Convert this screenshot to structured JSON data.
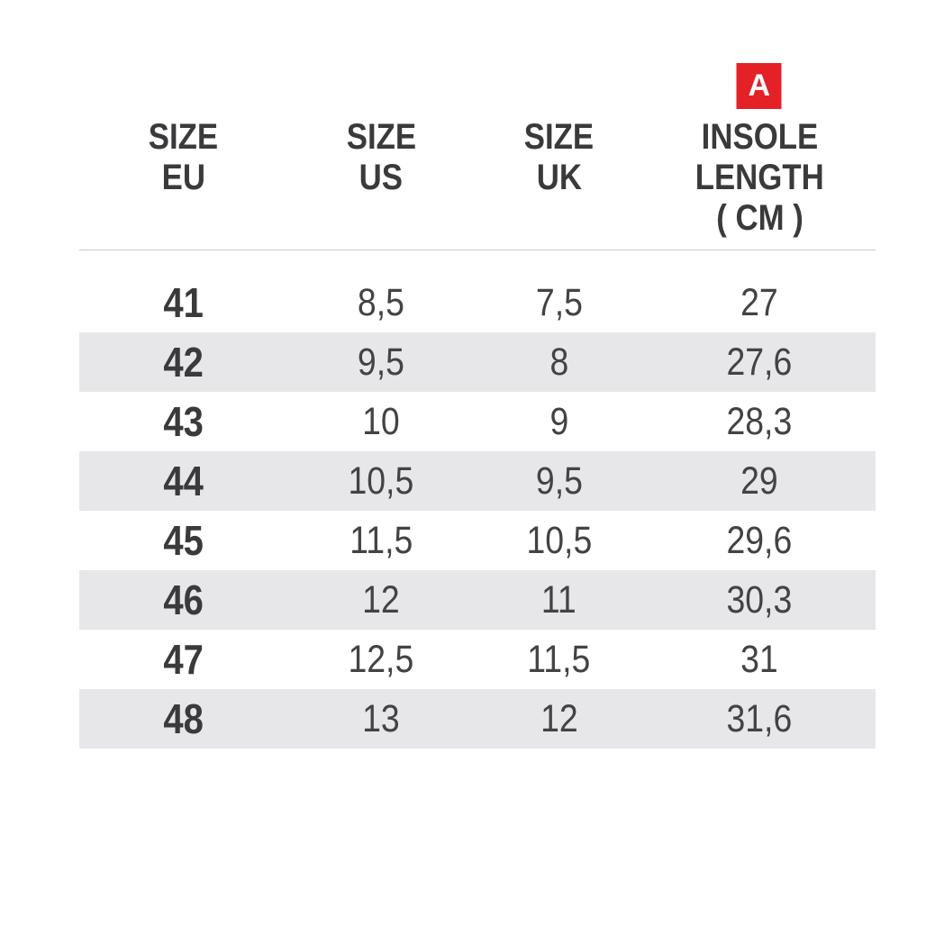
{
  "badge": {
    "label": "A",
    "color": "#e32127"
  },
  "table": {
    "headers": [
      {
        "line1": "SIZE",
        "line2": "EU"
      },
      {
        "line1": "SIZE",
        "line2": "US"
      },
      {
        "line1": "SIZE",
        "line2": "UK"
      },
      {
        "line1": "INSOLE",
        "line2": "LENGTH",
        "line3": "( CM )"
      }
    ],
    "rows": [
      {
        "eu": "41",
        "us": "8,5",
        "uk": "7,5",
        "insole": "27"
      },
      {
        "eu": "42",
        "us": "9,5",
        "uk": "8",
        "insole": "27,6"
      },
      {
        "eu": "43",
        "us": "10",
        "uk": "9",
        "insole": "28,3"
      },
      {
        "eu": "44",
        "us": "10,5",
        "uk": "9,5",
        "insole": "29"
      },
      {
        "eu": "45",
        "us": "11,5",
        "uk": "10,5",
        "insole": "29,6"
      },
      {
        "eu": "46",
        "us": "12",
        "uk": "11",
        "insole": "30,3"
      },
      {
        "eu": "47",
        "us": "12,5",
        "uk": "11,5",
        "insole": "31"
      },
      {
        "eu": "48",
        "us": "13",
        "uk": "12",
        "insole": "31,6"
      }
    ],
    "colors": {
      "stripe": "#e7e7e9",
      "separator": "#c7c7c9",
      "header_text": "#3a3a3c",
      "data_text": "#434345"
    }
  },
  "chart_data": {
    "type": "table",
    "title": "Shoe size conversion chart",
    "columns": [
      "SIZE EU",
      "SIZE US",
      "SIZE UK",
      "INSOLE LENGTH ( CM )"
    ],
    "rows": [
      [
        "41",
        "8,5",
        "7,5",
        "27"
      ],
      [
        "42",
        "9,5",
        "8",
        "27,6"
      ],
      [
        "43",
        "10",
        "9",
        "28,3"
      ],
      [
        "44",
        "10,5",
        "9,5",
        "29"
      ],
      [
        "45",
        "11,5",
        "10,5",
        "29,6"
      ],
      [
        "46",
        "12",
        "11",
        "30,3"
      ],
      [
        "47",
        "12,5",
        "11,5",
        "31"
      ],
      [
        "48",
        "13",
        "12",
        "31,6"
      ]
    ],
    "annotations": [
      "Red square badge labeled 'A' above the INSOLE LENGTH column"
    ],
    "layout": "alternating gray stripes on even rows (42, 44, 46, 48); thin gray rule under header"
  }
}
